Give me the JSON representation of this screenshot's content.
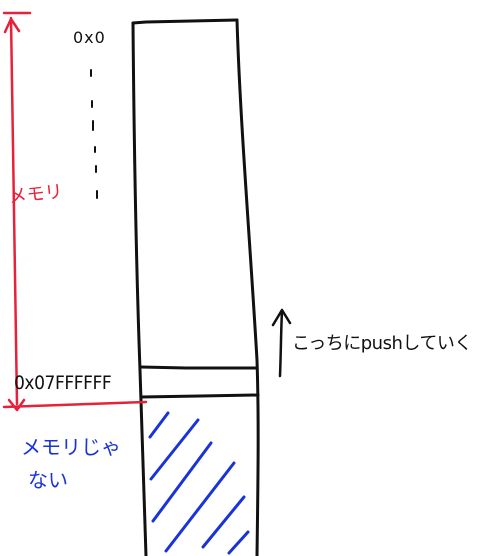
{
  "diagram": {
    "addr_top": "0x0",
    "addr_bottom": "0x07FFFFFF",
    "memory_label": "メモリ",
    "push_label": "こっちにpushしていく",
    "no_memory_line1": "メモリじゃ",
    "no_memory_line2": "ない"
  },
  "colors": {
    "ink": "#111111",
    "red": "#e8213a",
    "blue": "#1a33d9"
  }
}
